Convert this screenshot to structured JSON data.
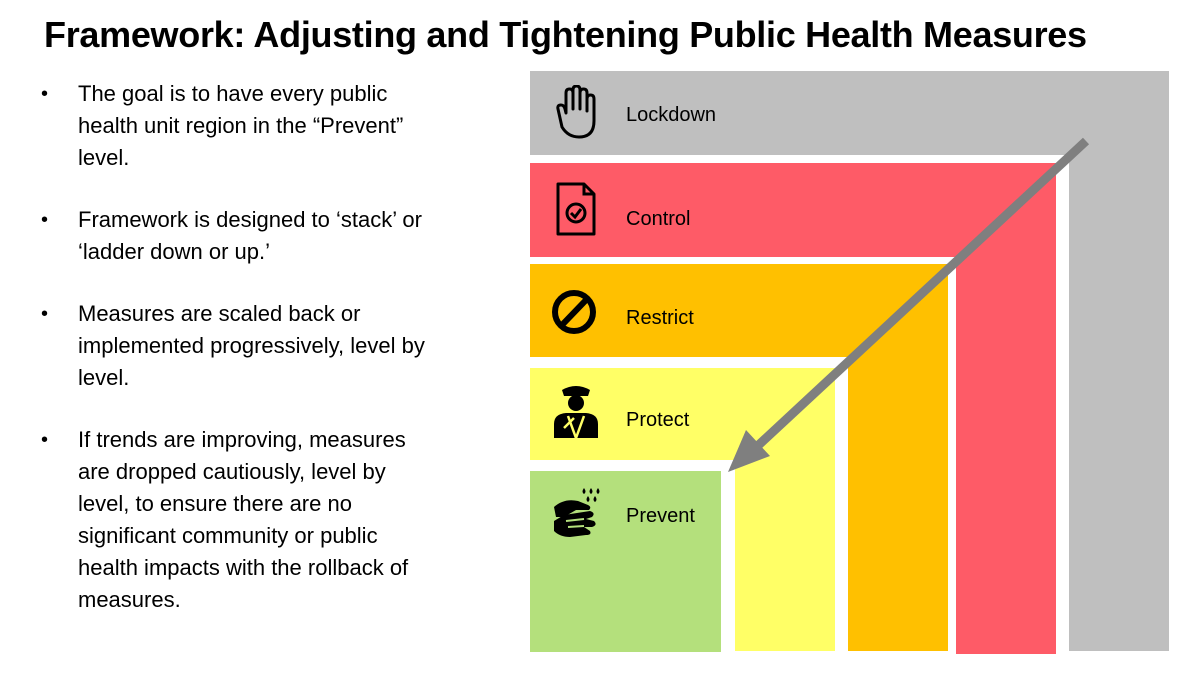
{
  "title": "Framework: Adjusting and Tightening Public Health Measures",
  "bullets": [
    "The goal is to have every public health unit region in the “Prevent” level.",
    "Framework is designed to ‘stack’ or ‘ladder down or up.’",
    "Measures are scaled back or implemented progressively, level by level.",
    "If trends are improving, measures are dropped cautiously, level by level, to ensure there are no significant community or public health impacts with the rollback of measures."
  ],
  "levels": [
    {
      "label": "Lockdown",
      "color": "#bfbfbf",
      "icon": "raised-hand-icon"
    },
    {
      "label": "Control",
      "color": "#fe5b67",
      "icon": "document-check-icon"
    },
    {
      "label": "Restrict",
      "color": "#ffc000",
      "icon": "prohibited-icon"
    },
    {
      "label": "Protect",
      "color": "#ffff66",
      "icon": "officer-icon"
    },
    {
      "label": "Prevent",
      "color": "#b4e07c",
      "icon": "hand-washing-icon"
    }
  ],
  "arrow_color": "#7f7f7f"
}
